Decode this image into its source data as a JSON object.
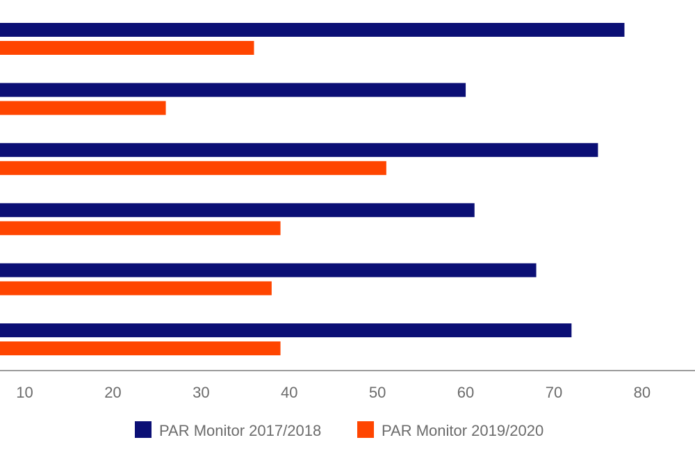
{
  "chart_data": {
    "type": "bar",
    "orientation": "horizontal",
    "title": "",
    "xlabel": "",
    "ylabel": "",
    "categories": [
      "",
      "",
      "",
      "",
      "",
      ""
    ],
    "series": [
      {
        "name": "PAR Monitor 2017/2018",
        "color": "#0b0f75",
        "values": [
          78,
          60,
          75,
          61,
          68,
          72
        ]
      },
      {
        "name": "PAR Monitor 2019/2020",
        "color": "#ff4500",
        "values": [
          36,
          26,
          51,
          39,
          38,
          39
        ]
      }
    ],
    "xticks": [
      "10",
      "20",
      "30",
      "40",
      "50",
      "60",
      "70",
      "80"
    ],
    "xlim": [
      7.2,
      86
    ],
    "grid": false,
    "legend_position": "bottom",
    "axis_color": "#7a7a7a",
    "tick_label_color": "#6b6b6b"
  }
}
